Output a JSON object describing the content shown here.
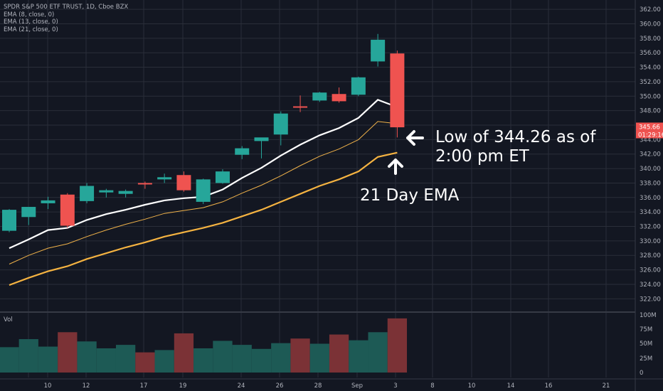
{
  "legend": {
    "title": "SPDR S&P 500 ETF TRUST, 1D, Cboe BZX",
    "ema8": "EMA (8, close, 0)",
    "ema13": "EMA (13, close, 0)",
    "ema21": "EMA (21, close, 0)"
  },
  "volume_pane": {
    "label": "Vol"
  },
  "annotations": {
    "low_text": "Low of 344.26 as of 2:00 pm ET",
    "ema_text": "21 Day EMA"
  },
  "price_badges": {
    "price": "345.66",
    "countdown": "01:29:16"
  },
  "colors": {
    "background": "#131722",
    "up": "#26a69a",
    "down": "#ef5350",
    "ema8": "#ffffff",
    "ema13": "#f0b24a",
    "ema21": "#f5b341",
    "grid": "#2a2e39"
  },
  "chart_data": {
    "type": "candlestick",
    "ylim": [
      321,
      363
    ],
    "y_ticks": [
      "322.00",
      "324.00",
      "326.00",
      "328.00",
      "330.00",
      "332.00",
      "334.00",
      "336.00",
      "338.00",
      "340.00",
      "342.00",
      "344.00",
      "346.00",
      "348.00",
      "350.00",
      "352.00",
      "354.00",
      "356.00",
      "358.00",
      "360.00",
      "362.00"
    ],
    "volume_ticks": [
      "0",
      "25M",
      "50M",
      "75M",
      "100M"
    ],
    "x_ticks": [
      "10",
      "12",
      "17",
      "19",
      "24",
      "26",
      "28",
      "Sep",
      "3",
      "8",
      "10",
      "14",
      "16",
      "21"
    ],
    "candles": [
      {
        "open": 331.4,
        "high": 334.4,
        "low": 331.2,
        "close": 334.3,
        "volume": 44
      },
      {
        "open": 333.3,
        "high": 334.6,
        "low": 332.2,
        "close": 334.7,
        "volume": 58
      },
      {
        "open": 335.2,
        "high": 336.1,
        "low": 334.4,
        "close": 335.6,
        "volume": 45
      },
      {
        "open": 336.4,
        "high": 336.6,
        "low": 331.8,
        "close": 332.1,
        "volume": 70
      },
      {
        "open": 335.5,
        "high": 338.0,
        "low": 335.2,
        "close": 337.6,
        "volume": 54
      },
      {
        "open": 336.7,
        "high": 337.2,
        "low": 336.0,
        "close": 337.0,
        "volume": 42
      },
      {
        "open": 336.5,
        "high": 337.1,
        "low": 336.0,
        "close": 336.9,
        "volume": 48
      },
      {
        "open": 338.0,
        "high": 338.2,
        "low": 337.2,
        "close": 337.8,
        "volume": 35
      },
      {
        "open": 338.5,
        "high": 339.3,
        "low": 338.0,
        "close": 338.8,
        "volume": 39
      },
      {
        "open": 339.1,
        "high": 339.6,
        "low": 336.8,
        "close": 337.0,
        "volume": 68
      },
      {
        "open": 335.4,
        "high": 338.6,
        "low": 335.1,
        "close": 338.5,
        "volume": 42
      },
      {
        "open": 338.0,
        "high": 339.9,
        "low": 337.9,
        "close": 339.6,
        "volume": 55
      },
      {
        "open": 341.9,
        "high": 343.1,
        "low": 341.3,
        "close": 342.8,
        "volume": 48
      },
      {
        "open": 343.8,
        "high": 344.2,
        "low": 341.4,
        "close": 344.3,
        "volume": 41
      },
      {
        "open": 344.7,
        "high": 347.9,
        "low": 343.2,
        "close": 347.6,
        "volume": 51
      },
      {
        "open": 348.6,
        "high": 350.1,
        "low": 347.8,
        "close": 348.5,
        "volume": 59
      },
      {
        "open": 349.4,
        "high": 350.6,
        "low": 349.2,
        "close": 350.5,
        "volume": 50
      },
      {
        "open": 350.3,
        "high": 351.2,
        "low": 349.1,
        "close": 349.3,
        "volume": 66
      },
      {
        "open": 350.2,
        "high": 352.7,
        "low": 350.0,
        "close": 352.6,
        "volume": 56
      },
      {
        "open": 354.8,
        "high": 358.6,
        "low": 354.1,
        "close": 357.8,
        "volume": 70
      },
      {
        "open": 355.9,
        "high": 356.3,
        "low": 344.3,
        "close": 345.7,
        "volume": 94
      }
    ],
    "ema8": [
      329.0,
      330.2,
      331.5,
      331.8,
      332.9,
      333.7,
      334.3,
      335.0,
      335.6,
      335.9,
      336.1,
      337.1,
      338.7,
      340.1,
      341.8,
      343.3,
      344.6,
      345.6,
      347.0,
      349.5,
      348.5
    ],
    "ema13": [
      326.8,
      328.0,
      329.0,
      329.6,
      330.6,
      331.5,
      332.3,
      333.0,
      333.8,
      334.2,
      334.6,
      335.4,
      336.6,
      337.7,
      339.0,
      340.4,
      341.7,
      342.7,
      344.0,
      346.5,
      346.2
    ],
    "ema21": [
      323.9,
      324.9,
      325.8,
      326.5,
      327.5,
      328.3,
      329.1,
      329.8,
      330.6,
      331.2,
      331.8,
      332.5,
      333.4,
      334.3,
      335.4,
      336.5,
      337.6,
      338.5,
      339.6,
      341.6,
      342.2
    ]
  }
}
